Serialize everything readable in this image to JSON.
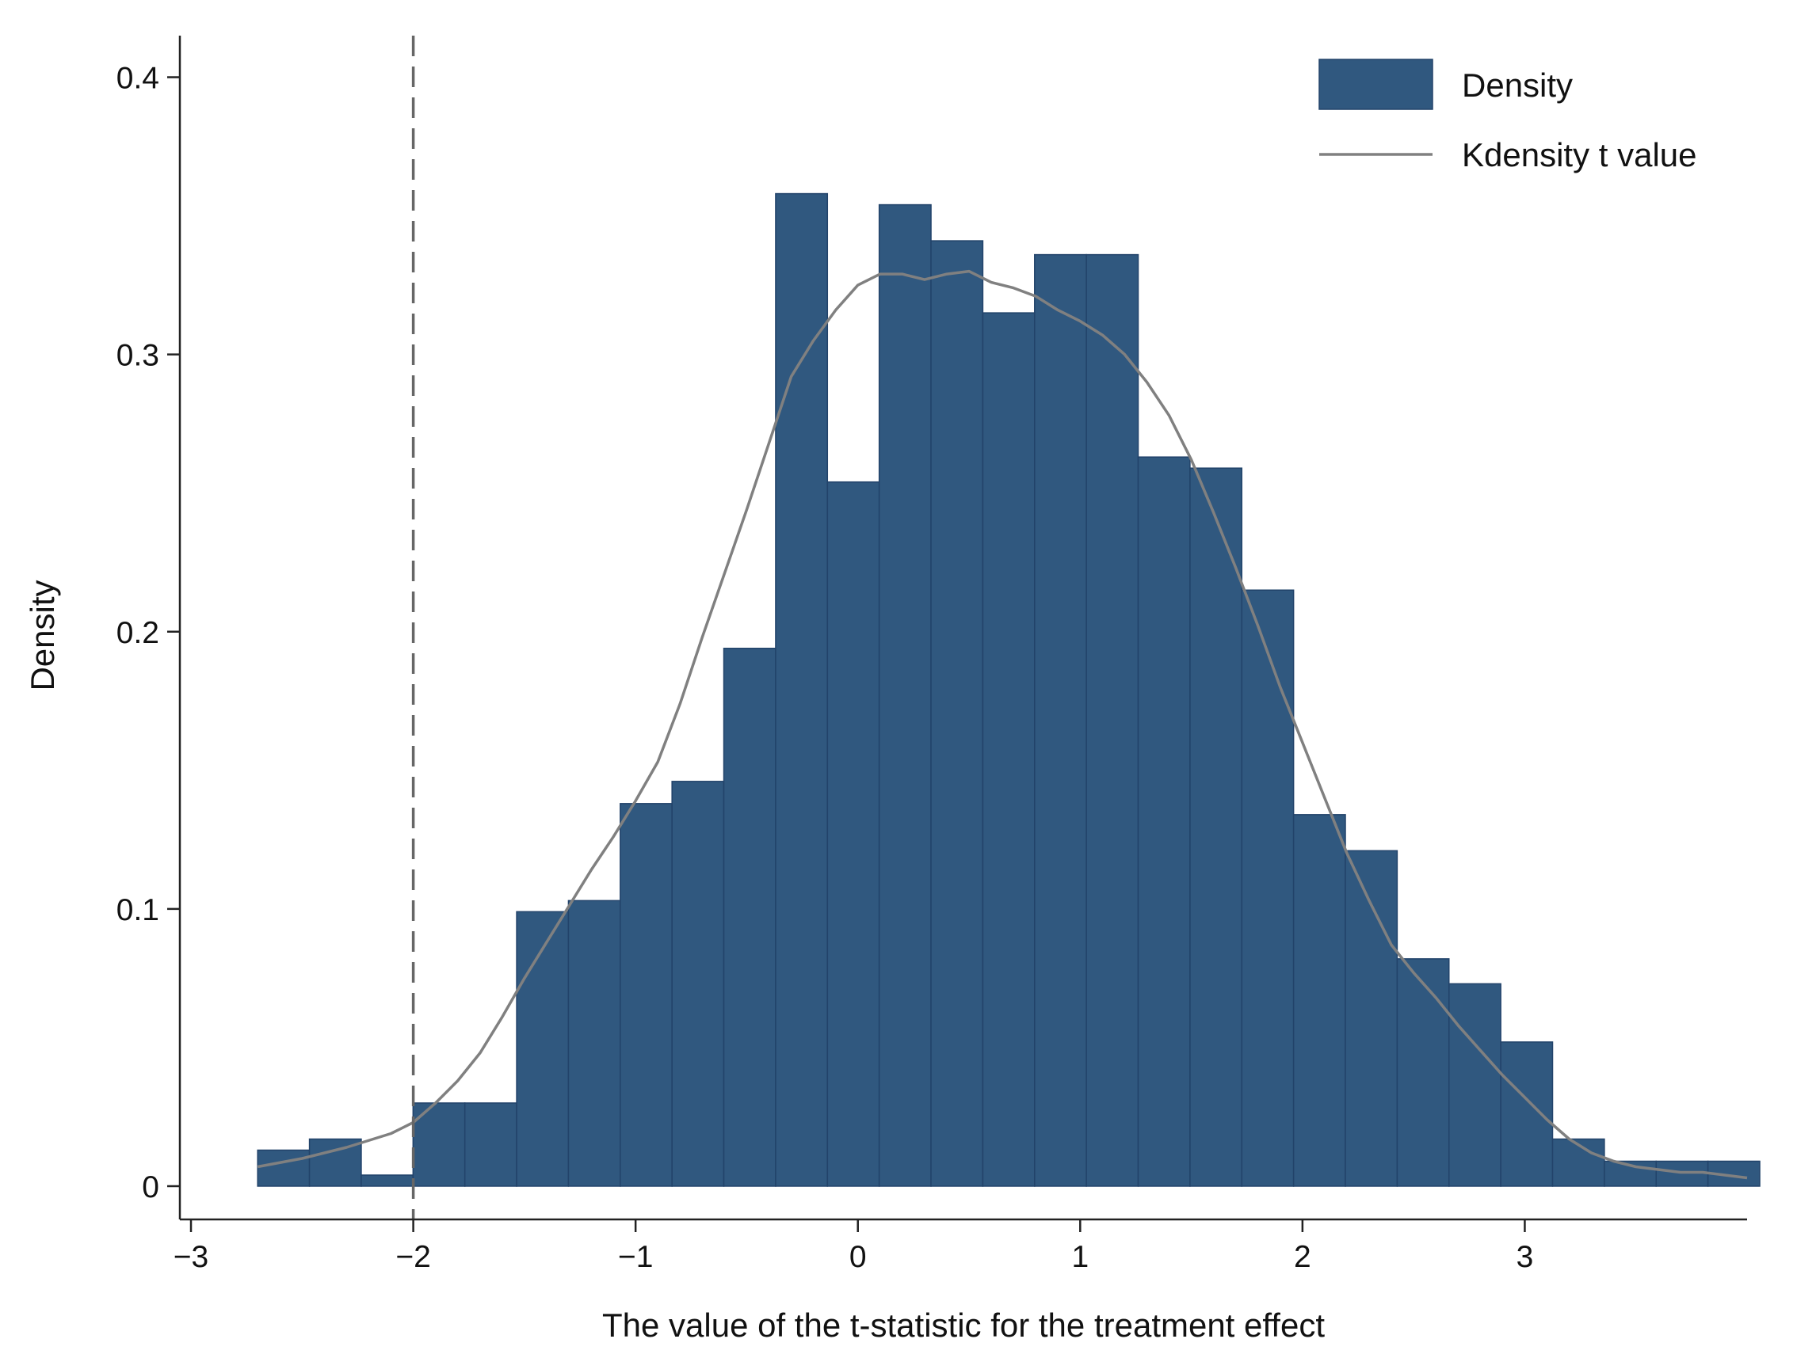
{
  "chart_data": {
    "type": "bar",
    "subtype": "histogram with kernel density overlay",
    "xlabel": "The value of the t-statistic for the treatment effect",
    "ylabel": "Density",
    "xlim": [
      -3.05,
      4.0
    ],
    "ylim": [
      -0.012,
      0.415
    ],
    "x_ticks": [
      -3,
      -2,
      -1,
      0,
      1,
      2,
      3
    ],
    "x_tick_labels": [
      "−3",
      "−2",
      "−1",
      "0",
      "1",
      "2",
      "3"
    ],
    "y_ticks": [
      0,
      0.1,
      0.2,
      0.3,
      0.4
    ],
    "y_tick_labels": [
      "0",
      "0.1",
      "0.2",
      "0.3",
      "0.4"
    ],
    "grid": false,
    "legend_position": "top-right",
    "reference_line": {
      "x": -2,
      "style": "dashed",
      "color": "#666666"
    },
    "colors": {
      "bars": "#30587f",
      "bar_edge": "#22436a",
      "kdensity": "#808080",
      "axis": "#222222"
    },
    "series": [
      {
        "name": "Density",
        "kind": "bar",
        "bin_edges": [
          -2.7,
          -2.467,
          -2.234,
          -2.001,
          -1.768,
          -1.535,
          -1.302,
          -1.069,
          -0.836,
          -0.603,
          -0.37,
          -0.137,
          0.096,
          0.329,
          0.562,
          0.795,
          1.028,
          1.261,
          1.494,
          1.727,
          1.96,
          2.193,
          2.426,
          2.659,
          2.892,
          3.125,
          3.358,
          3.591,
          3.824,
          4.057
        ],
        "values": [
          0.013,
          0.017,
          0.004,
          0.03,
          0.03,
          0.099,
          0.103,
          0.138,
          0.146,
          0.194,
          0.358,
          0.254,
          0.354,
          0.341,
          0.315,
          0.336,
          0.336,
          0.263,
          0.259,
          0.215,
          0.134,
          0.121,
          0.082,
          0.073,
          0.052,
          0.017,
          0.009,
          0.009,
          0.009
        ]
      },
      {
        "name": "Kdensity t value",
        "kind": "line",
        "x": [
          -2.7,
          -2.5,
          -2.3,
          -2.1,
          -2.0,
          -1.9,
          -1.8,
          -1.7,
          -1.6,
          -1.5,
          -1.4,
          -1.3,
          -1.2,
          -1.1,
          -1.0,
          -0.9,
          -0.8,
          -0.7,
          -0.6,
          -0.5,
          -0.4,
          -0.3,
          -0.2,
          -0.1,
          0.0,
          0.1,
          0.2,
          0.3,
          0.4,
          0.5,
          0.6,
          0.7,
          0.8,
          0.9,
          1.0,
          1.1,
          1.2,
          1.3,
          1.4,
          1.5,
          1.6,
          1.7,
          1.8,
          1.9,
          2.0,
          2.1,
          2.2,
          2.3,
          2.4,
          2.5,
          2.6,
          2.7,
          2.8,
          2.9,
          3.0,
          3.1,
          3.2,
          3.3,
          3.4,
          3.5,
          3.6,
          3.7,
          3.8,
          3.9,
          4.0
        ],
        "y": [
          0.007,
          0.01,
          0.014,
          0.019,
          0.023,
          0.03,
          0.038,
          0.048,
          0.061,
          0.075,
          0.088,
          0.101,
          0.114,
          0.126,
          0.139,
          0.153,
          0.174,
          0.198,
          0.221,
          0.244,
          0.268,
          0.292,
          0.305,
          0.316,
          0.325,
          0.329,
          0.329,
          0.327,
          0.329,
          0.33,
          0.326,
          0.324,
          0.321,
          0.316,
          0.312,
          0.307,
          0.3,
          0.29,
          0.278,
          0.262,
          0.243,
          0.223,
          0.202,
          0.18,
          0.16,
          0.14,
          0.12,
          0.103,
          0.087,
          0.077,
          0.068,
          0.058,
          0.049,
          0.04,
          0.032,
          0.024,
          0.017,
          0.012,
          0.009,
          0.007,
          0.006,
          0.005,
          0.005,
          0.004,
          0.003
        ]
      }
    ]
  }
}
